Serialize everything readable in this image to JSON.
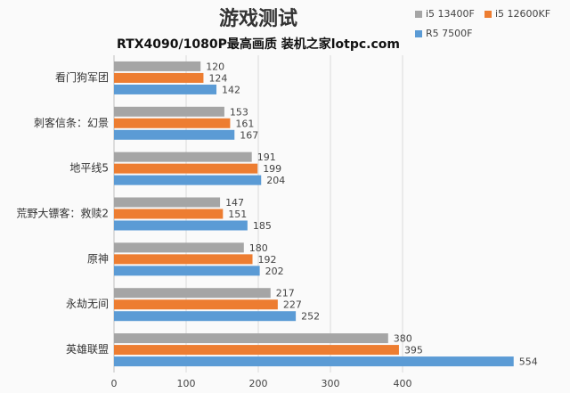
{
  "chart_data": {
    "type": "hbar",
    "title": "游戏测试",
    "subtitle": "RTX4090/1080P最高画质 装机之家lotpc.com",
    "categories": [
      "看门狗军团",
      "刺客信条：幻景",
      "地平线5",
      "荒野大镖客：救赎2",
      "原神",
      "永劫无间",
      "英雄联盟"
    ],
    "series": [
      {
        "name": "i5 13400F",
        "color": "#a5a5a5",
        "values": [
          120,
          153,
          191,
          147,
          180,
          217,
          380
        ]
      },
      {
        "name": "i5 12600KF",
        "color": "#ed7d31",
        "values": [
          124,
          161,
          199,
          151,
          192,
          227,
          395
        ]
      },
      {
        "name": "R5 7500F",
        "color": "#5b9bd5",
        "values": [
          142,
          167,
          204,
          185,
          202,
          252,
          554
        ]
      }
    ],
    "xlim": [
      0,
      600
    ],
    "xticks": [
      0,
      100,
      200,
      300,
      400
    ],
    "grid": true
  }
}
